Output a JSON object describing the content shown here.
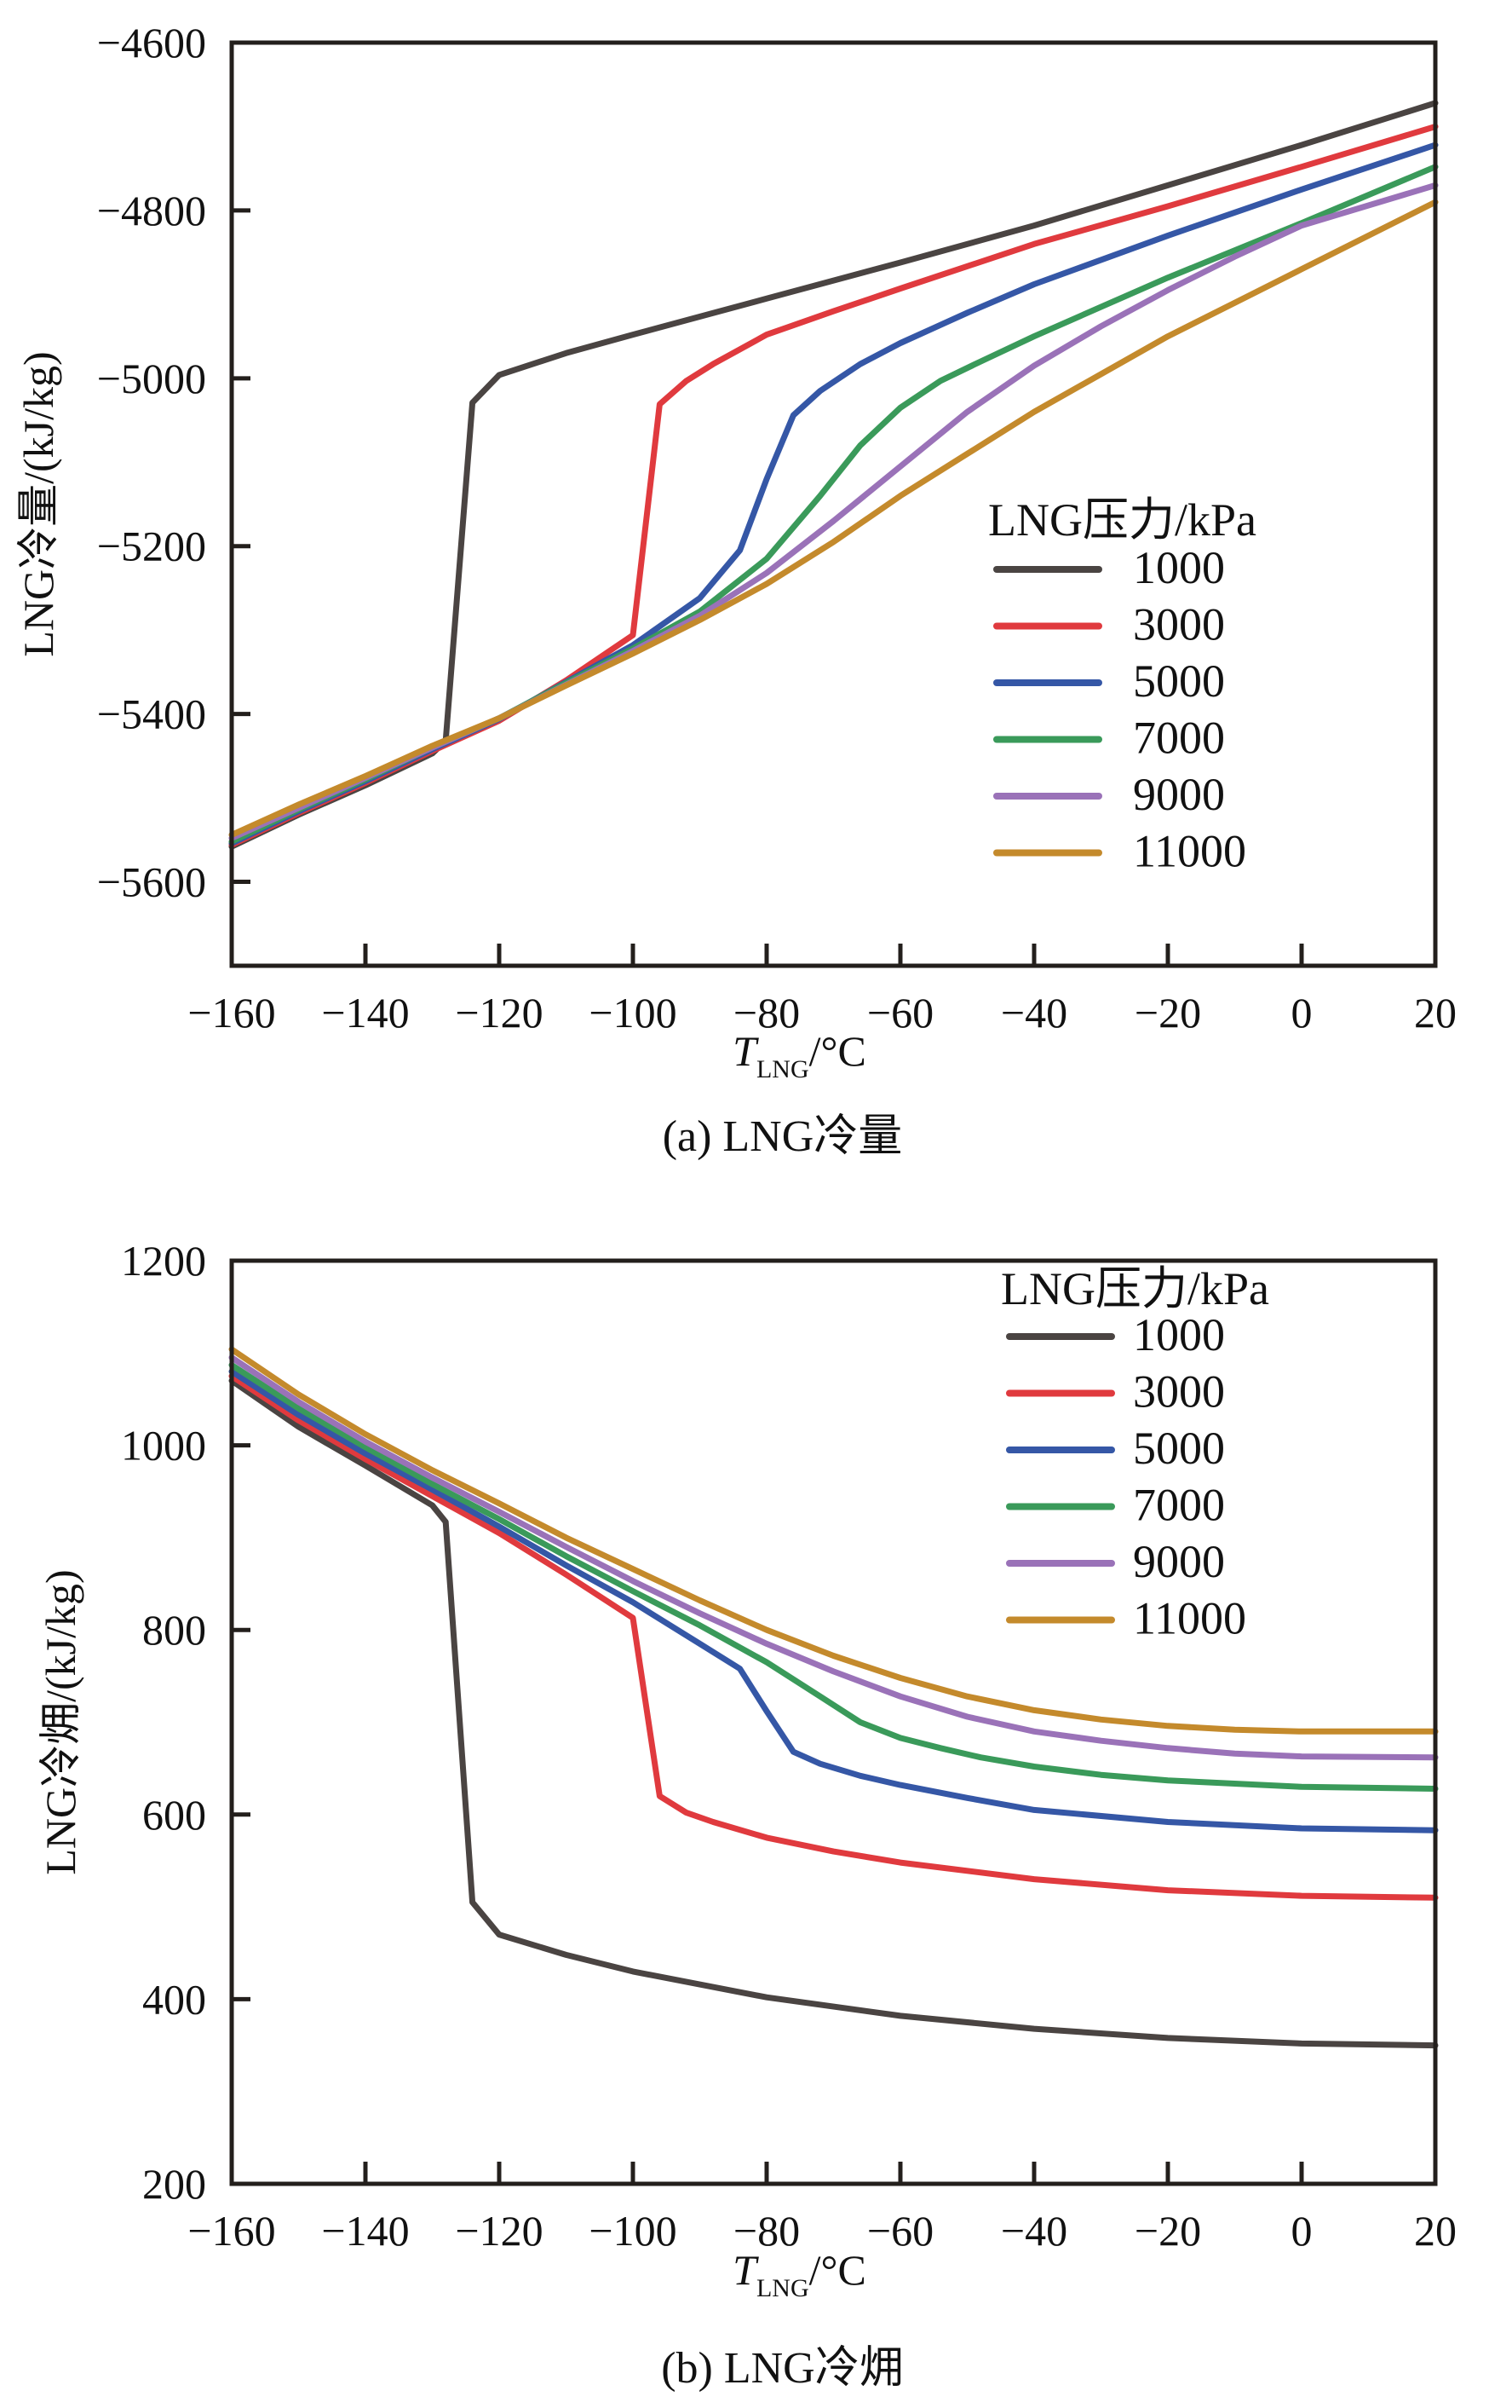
{
  "figure": {
    "colors": {
      "1000": "#4a4442",
      "3000": "#e03a3e",
      "5000": "#3557a6",
      "7000": "#3a9a5a",
      "9000": "#9a72b8",
      "11000": "#c48a2c"
    }
  },
  "chart_data": [
    {
      "id": "a",
      "type": "line",
      "caption": "(a) LNG冷量",
      "title": "",
      "xlabel_main": "T",
      "xlabel_sub": "LNG",
      "xlabel_unit": "/°C",
      "ylabel": "LNG冷量/(kJ/kg)",
      "xlim": [
        -160,
        20
      ],
      "ylim": [
        -5700,
        -4600
      ],
      "xticks": [
        -160,
        -140,
        -120,
        -100,
        -80,
        -60,
        -40,
        -20,
        0,
        20
      ],
      "xtick_labels": [
        "−160",
        "−140",
        "−120",
        "−100",
        "−80",
        "−60",
        "−40",
        "−20",
        "0",
        "20"
      ],
      "yticks": [
        -4600,
        -4800,
        -5000,
        -5200,
        -5400,
        -5600
      ],
      "ytick_labels": [
        "−4600",
        "−4800",
        "−5000",
        "−5200",
        "−5400",
        "−5600"
      ],
      "grid": false,
      "legend": {
        "title": "LNG压力/kPa",
        "position": "center-right"
      },
      "series": [
        {
          "name": "1000",
          "x": [
            -160,
            -150,
            -140,
            -130,
            -128,
            -124,
            -120,
            -110,
            -100,
            -80,
            -60,
            -40,
            -20,
            0,
            20
          ],
          "y": [
            -5558,
            -5520,
            -5485,
            -5447,
            -5432,
            -5029,
            -4996,
            -4970,
            -4948,
            -4905,
            -4862,
            -4818,
            -4770,
            -4722,
            -4672
          ]
        },
        {
          "name": "3000",
          "x": [
            -160,
            -150,
            -140,
            -130,
            -120,
            -110,
            -100,
            -96,
            -92,
            -88,
            -80,
            -70,
            -60,
            -40,
            -20,
            0,
            20
          ],
          "y": [
            -5556,
            -5518,
            -5482,
            -5444,
            -5408,
            -5360,
            -5306,
            -5031,
            -5003,
            -4983,
            -4948,
            -4920,
            -4893,
            -4840,
            -4795,
            -4748,
            -4700
          ]
        },
        {
          "name": "5000",
          "x": [
            -160,
            -150,
            -140,
            -130,
            -120,
            -110,
            -100,
            -90,
            -84,
            -80,
            -76,
            -72,
            -66,
            -60,
            -50,
            -40,
            -20,
            0,
            20
          ],
          "y": [
            -5554,
            -5516,
            -5480,
            -5442,
            -5406,
            -5362,
            -5318,
            -5262,
            -5205,
            -5120,
            -5044,
            -5015,
            -4983,
            -4958,
            -4922,
            -4888,
            -4830,
            -4775,
            -4722
          ]
        },
        {
          "name": "7000",
          "x": [
            -160,
            -150,
            -140,
            -130,
            -120,
            -110,
            -100,
            -90,
            -80,
            -72,
            -66,
            -60,
            -54,
            -48,
            -40,
            -30,
            -20,
            0,
            20
          ],
          "y": [
            -5552,
            -5514,
            -5478,
            -5440,
            -5405,
            -5363,
            -5322,
            -5278,
            -5215,
            -5140,
            -5080,
            -5035,
            -5003,
            -4980,
            -4950,
            -4915,
            -4880,
            -4815,
            -4748
          ]
        },
        {
          "name": "9000",
          "x": [
            -160,
            -150,
            -140,
            -130,
            -120,
            -110,
            -100,
            -90,
            -80,
            -70,
            -60,
            -50,
            -40,
            -30,
            -20,
            -10,
            0,
            20
          ],
          "y": [
            -5548,
            -5512,
            -5476,
            -5440,
            -5405,
            -5365,
            -5325,
            -5283,
            -5232,
            -5170,
            -5105,
            -5040,
            -4985,
            -4938,
            -4895,
            -4855,
            -4818,
            -4770
          ]
        },
        {
          "name": "11000",
          "x": [
            -160,
            -150,
            -140,
            -130,
            -120,
            -110,
            -100,
            -90,
            -80,
            -70,
            -60,
            -50,
            -40,
            -30,
            -20,
            -10,
            0,
            20
          ],
          "y": [
            -5544,
            -5508,
            -5474,
            -5438,
            -5405,
            -5366,
            -5328,
            -5288,
            -5245,
            -5195,
            -5140,
            -5090,
            -5040,
            -4995,
            -4950,
            -4910,
            -4870,
            -4790
          ]
        }
      ]
    },
    {
      "id": "b",
      "type": "line",
      "caption": "(b) LNG冷㶲",
      "title": "",
      "xlabel_main": "T",
      "xlabel_sub": "LNG",
      "xlabel_unit": "/°C",
      "ylabel": "LNG冷㶲/(kJ/kg)",
      "xlim": [
        -160,
        20
      ],
      "ylim": [
        200,
        1200
      ],
      "xticks": [
        -160,
        -140,
        -120,
        -100,
        -80,
        -60,
        -40,
        -20,
        0,
        20
      ],
      "xtick_labels": [
        "−160",
        "−140",
        "−120",
        "−100",
        "−80",
        "−60",
        "−40",
        "−20",
        "0",
        "20"
      ],
      "yticks": [
        200,
        400,
        600,
        800,
        1000,
        1200
      ],
      "ytick_labels": [
        "200",
        "400",
        "600",
        "800",
        "1000",
        "1200"
      ],
      "grid": false,
      "legend": {
        "title": "LNG压力/kPa",
        "position": "top-right"
      },
      "series": [
        {
          "name": "1000",
          "x": [
            -160,
            -150,
            -140,
            -130,
            -128,
            -124,
            -120,
            -110,
            -100,
            -80,
            -60,
            -40,
            -20,
            0,
            20
          ],
          "y": [
            1070,
            1020,
            978,
            935,
            917,
            505,
            470,
            448,
            430,
            402,
            382,
            368,
            358,
            352,
            350
          ]
        },
        {
          "name": "3000",
          "x": [
            -160,
            -150,
            -140,
            -130,
            -120,
            -110,
            -100,
            -96,
            -92,
            -88,
            -80,
            -70,
            -60,
            -40,
            -20,
            0,
            20
          ],
          "y": [
            1075,
            1027,
            985,
            945,
            905,
            860,
            813,
            620,
            602,
            592,
            575,
            560,
            548,
            530,
            518,
            512,
            510
          ]
        },
        {
          "name": "5000",
          "x": [
            -160,
            -150,
            -140,
            -130,
            -120,
            -110,
            -100,
            -90,
            -84,
            -80,
            -76,
            -72,
            -66,
            -60,
            -50,
            -40,
            -20,
            0,
            20
          ],
          "y": [
            1080,
            1033,
            991,
            952,
            912,
            870,
            830,
            785,
            758,
            712,
            668,
            655,
            642,
            632,
            618,
            605,
            592,
            585,
            583
          ]
        },
        {
          "name": "7000",
          "x": [
            -160,
            -150,
            -140,
            -130,
            -120,
            -110,
            -100,
            -90,
            -80,
            -72,
            -66,
            -60,
            -54,
            -48,
            -40,
            -30,
            -20,
            0,
            20
          ],
          "y": [
            1087,
            1040,
            998,
            958,
            920,
            880,
            842,
            805,
            765,
            728,
            700,
            683,
            672,
            662,
            652,
            643,
            637,
            630,
            628
          ]
        },
        {
          "name": "9000",
          "x": [
            -160,
            -150,
            -140,
            -130,
            -120,
            -110,
            -100,
            -90,
            -80,
            -70,
            -60,
            -50,
            -40,
            -30,
            -20,
            -10,
            0,
            20
          ],
          "y": [
            1095,
            1047,
            1004,
            965,
            928,
            890,
            853,
            818,
            785,
            755,
            728,
            706,
            690,
            680,
            672,
            666,
            663,
            662
          ]
        },
        {
          "name": "11000",
          "x": [
            -160,
            -150,
            -140,
            -130,
            -120,
            -110,
            -100,
            -90,
            -80,
            -70,
            -60,
            -50,
            -40,
            -30,
            -20,
            -10,
            0,
            20
          ],
          "y": [
            1104,
            1055,
            1012,
            973,
            937,
            900,
            866,
            832,
            800,
            772,
            748,
            728,
            713,
            703,
            696,
            692,
            690,
            690
          ]
        }
      ]
    }
  ]
}
